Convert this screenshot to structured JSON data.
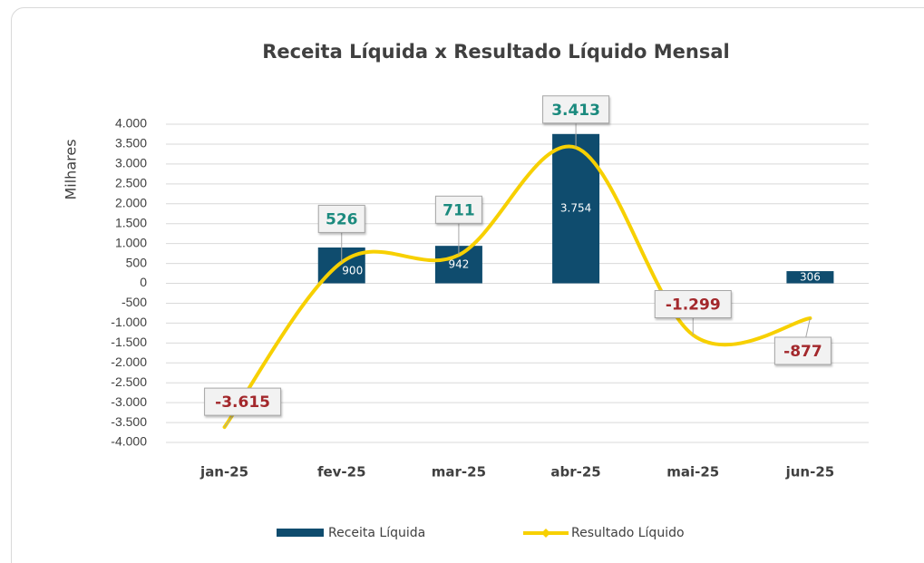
{
  "chart_data": {
    "type": "combo",
    "title": "Receita Líquida x Resultado Líquido Mensal",
    "y_label": "Milhares",
    "categories": [
      "jan-25",
      "fev-25",
      "mar-25",
      "abr-25",
      "mai-25",
      "jun-25"
    ],
    "series": [
      {
        "name": "Receita Líquida",
        "type": "bar",
        "color": "#0f4c6e",
        "values": [
          null,
          900,
          942,
          3754,
          null,
          306
        ],
        "value_labels": [
          null,
          "900",
          "942",
          "3.754",
          null,
          "306"
        ]
      },
      {
        "name": "Resultado Líquido",
        "type": "line",
        "color": "#f7d000",
        "values": [
          -3615,
          526,
          711,
          3413,
          -1299,
          -877
        ],
        "value_labels": [
          "-3.615",
          "526",
          "711",
          "3.413",
          "-1.299",
          "-877"
        ]
      }
    ],
    "ylim": [
      -4000,
      4000
    ],
    "yticks": [
      {
        "value": -4000,
        "label": "-4.000"
      },
      {
        "value": -3500,
        "label": "-3.500"
      },
      {
        "value": -3000,
        "label": "-3.000"
      },
      {
        "value": -2500,
        "label": "-2.500"
      },
      {
        "value": -2000,
        "label": "-2.000"
      },
      {
        "value": -1500,
        "label": "-1.500"
      },
      {
        "value": -1000,
        "label": "-1.000"
      },
      -500,
      0,
      500,
      {
        "value": 1000,
        "label": "1.000"
      },
      {
        "value": 1500,
        "label": "1.500"
      },
      {
        "value": 2000,
        "label": "2.000"
      },
      {
        "value": 2500,
        "label": "2.500"
      },
      {
        "value": 3000,
        "label": "3.000"
      },
      {
        "value": 3500,
        "label": "3.500"
      },
      {
        "value": 4000,
        "label": "4.000"
      }
    ],
    "grid": true,
    "legend": "bottom"
  }
}
